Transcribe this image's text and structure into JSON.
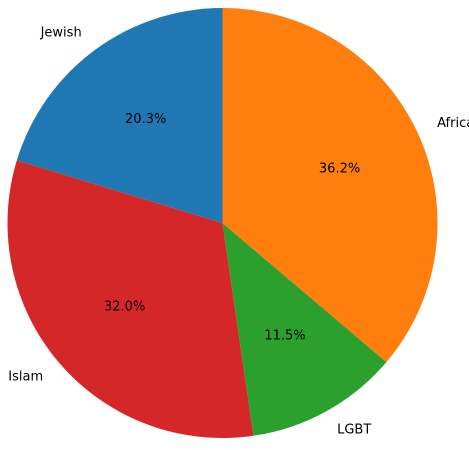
{
  "chart_data": {
    "type": "pie",
    "title": "",
    "categories": [
      "Jewish",
      "Islam",
      "LGBT",
      "African"
    ],
    "values": [
      20.3,
      32.0,
      11.5,
      36.2
    ],
    "labels": [
      "20.3%",
      "32.0%",
      "11.5%",
      "36.2%"
    ],
    "colors": [
      "#1f77b4",
      "#d62728",
      "#2ca02c",
      "#ff7f0e"
    ],
    "start_angle_deg": 90,
    "direction": "counterclockwise",
    "legend": "none"
  }
}
